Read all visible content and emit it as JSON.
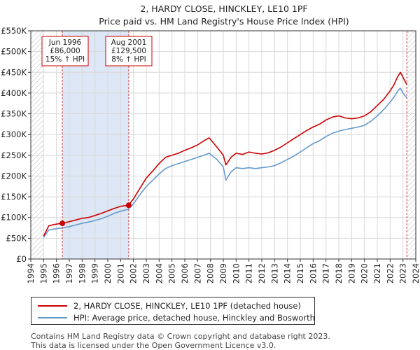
{
  "chart_data": {
    "type": "line",
    "title": "2, HARDY CLOSE, HINCKLEY, LE10 1PF",
    "subtitle": "Price paid vs. HM Land Registry's House Price Index (HPI)",
    "xlabel": "",
    "ylabel": "",
    "xlim": [
      1995.0,
      2024.0
    ],
    "ylim": [
      0,
      550000
    ],
    "x_ticks": [
      1994,
      1995,
      1996,
      1997,
      1998,
      1999,
      2000,
      2001,
      2002,
      2003,
      2004,
      2005,
      2006,
      2007,
      2008,
      2009,
      2010,
      2011,
      2012,
      2013,
      2014,
      2015,
      2016,
      2017,
      2018,
      2019,
      2020,
      2021,
      2022,
      2023,
      2024
    ],
    "y_ticks": [
      0,
      50000,
      100000,
      150000,
      200000,
      250000,
      300000,
      350000,
      400000,
      450000,
      500000,
      550000
    ],
    "y_tick_labels": [
      "£0",
      "£50K",
      "£100K",
      "£150K",
      "£200K",
      "£250K",
      "£300K",
      "£350K",
      "£400K",
      "£450K",
      "£500K",
      "£550K"
    ],
    "grid": true,
    "colors": {
      "property": "#cc0000",
      "hpi": "#6699cc",
      "shade": "#dde7f5",
      "hatch": "#bbbbbb",
      "grid": "#d8d8d8",
      "marker_line": "#cc4444",
      "annotation_border": "#cc0000"
    },
    "series": [
      {
        "name": "2, HARDY CLOSE, HINCKLEY, LE10 1PF (detached house)",
        "color": "#cc0000",
        "x": [
          1995.0,
          1995.4,
          1995.8,
          1996.2,
          1996.46,
          1997.0,
          1997.5,
          1998.0,
          1998.5,
          1999.0,
          1999.5,
          2000.0,
          2000.5,
          2001.0,
          2001.6,
          2002.0,
          2002.5,
          2003.0,
          2003.5,
          2004.0,
          2004.5,
          2005.0,
          2005.5,
          2006.0,
          2006.5,
          2007.0,
          2007.5,
          2007.9,
          2008.5,
          2009.0,
          2009.2,
          2009.6,
          2010.0,
          2010.5,
          2011.0,
          2011.5,
          2012.0,
          2012.5,
          2013.0,
          2013.5,
          2014.0,
          2014.5,
          2015.0,
          2015.5,
          2016.0,
          2016.5,
          2017.0,
          2017.5,
          2018.0,
          2018.5,
          2019.0,
          2019.5,
          2020.0,
          2020.5,
          2021.0,
          2021.5,
          2022.0,
          2022.3,
          2022.6,
          2022.8,
          2023.0,
          2023.3
        ],
        "values": [
          55000,
          80000,
          83000,
          85000,
          86000,
          90000,
          94000,
          98000,
          100000,
          105000,
          110000,
          116000,
          122000,
          127000,
          129500,
          145000,
          170000,
          195000,
          212000,
          230000,
          245000,
          250000,
          255000,
          262000,
          268000,
          275000,
          285000,
          292000,
          270000,
          250000,
          227000,
          245000,
          255000,
          252000,
          258000,
          255000,
          253000,
          256000,
          262000,
          270000,
          280000,
          290000,
          300000,
          310000,
          318000,
          325000,
          335000,
          342000,
          345000,
          340000,
          338000,
          340000,
          345000,
          355000,
          370000,
          385000,
          405000,
          420000,
          440000,
          450000,
          438000,
          420000
        ]
      },
      {
        "name": "HPI: Average price, detached house, Hinckley and Bosworth",
        "color": "#6699cc",
        "x": [
          1995.0,
          1995.4,
          1995.8,
          1996.2,
          1996.5,
          1997.0,
          1997.5,
          1998.0,
          1998.5,
          1999.0,
          1999.5,
          2000.0,
          2000.5,
          2001.0,
          2001.6,
          2002.0,
          2002.5,
          2003.0,
          2003.5,
          2004.0,
          2004.5,
          2005.0,
          2005.5,
          2006.0,
          2006.5,
          2007.0,
          2007.5,
          2007.9,
          2008.5,
          2009.0,
          2009.2,
          2009.6,
          2010.0,
          2010.5,
          2011.0,
          2011.5,
          2012.0,
          2012.5,
          2013.0,
          2013.5,
          2014.0,
          2014.5,
          2015.0,
          2015.5,
          2016.0,
          2016.5,
          2017.0,
          2017.5,
          2018.0,
          2018.5,
          2019.0,
          2019.5,
          2020.0,
          2020.5,
          2021.0,
          2021.5,
          2022.0,
          2022.3,
          2022.6,
          2022.8,
          2023.0,
          2023.3
        ],
        "values": [
          52000,
          70000,
          72000,
          74000,
          75000,
          78000,
          82000,
          86000,
          89000,
          93000,
          97000,
          103000,
          110000,
          115000,
          120000,
          133000,
          155000,
          175000,
          190000,
          205000,
          218000,
          225000,
          230000,
          235000,
          240000,
          245000,
          250000,
          255000,
          240000,
          222000,
          190000,
          210000,
          220000,
          218000,
          220000,
          218000,
          220000,
          222000,
          225000,
          232000,
          240000,
          248000,
          258000,
          268000,
          278000,
          285000,
          295000,
          303000,
          308000,
          312000,
          315000,
          318000,
          322000,
          332000,
          345000,
          360000,
          378000,
          390000,
          405000,
          412000,
          400000,
          388000
        ]
      }
    ],
    "shaded_ranges": [
      [
        1996.46,
        2001.63
      ]
    ],
    "hatched_ranges": [
      [
        1994.0,
        1995.0
      ],
      [
        2023.3,
        2024.0
      ]
    ],
    "sales": [
      {
        "x": 1996.46,
        "value": 86000,
        "label_lines": [
          "Jun 1996",
          "£86,000",
          "15% ↑ HPI"
        ]
      },
      {
        "x": 2001.63,
        "value": 129500,
        "label_lines": [
          "Aug 2001",
          "£129,500",
          "8% ↑ HPI"
        ]
      }
    ]
  },
  "legend": {
    "property_label": "2, HARDY CLOSE, HINCKLEY, LE10 1PF (detached house)",
    "hpi_label": "HPI: Average price, detached house, Hinckley and Bosworth"
  },
  "footer": {
    "line1": "Contains HM Land Registry data © Crown copyright and database right 2023.",
    "line2": "This data is licensed under the Open Government Licence v3.0."
  }
}
